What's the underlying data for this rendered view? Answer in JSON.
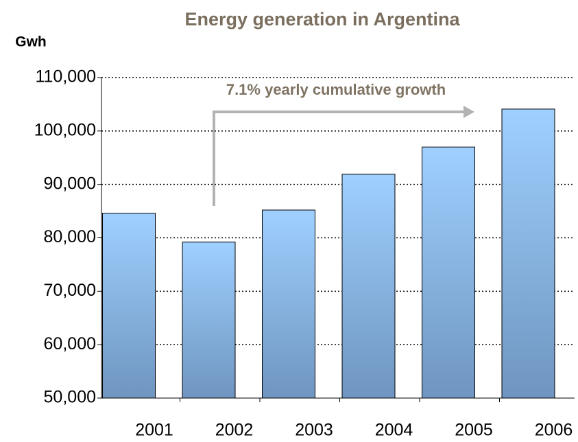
{
  "chart_data": {
    "type": "bar",
    "title": "Energy generation in Argentina",
    "y_label": "Gwh",
    "annotation": "7.1% yearly cumulative growth",
    "categories": [
      "2001",
      "2002",
      "2003",
      "2004",
      "2005",
      "2006"
    ],
    "values": [
      84600,
      79200,
      85200,
      91900,
      97000,
      104100
    ],
    "color": "#8fbef0",
    "ylim": [
      50000,
      110000
    ],
    "yticks": [
      {
        "value": 50000,
        "label": "50,000"
      },
      {
        "value": 60000,
        "label": "60,000"
      },
      {
        "value": 70000,
        "label": "70,000"
      },
      {
        "value": 80000,
        "label": "80,000"
      },
      {
        "value": 90000,
        "label": "90,000"
      },
      {
        "value": 100000,
        "label": "100,000"
      },
      {
        "value": 110000,
        "label": "110,000"
      }
    ],
    "grid": true
  }
}
